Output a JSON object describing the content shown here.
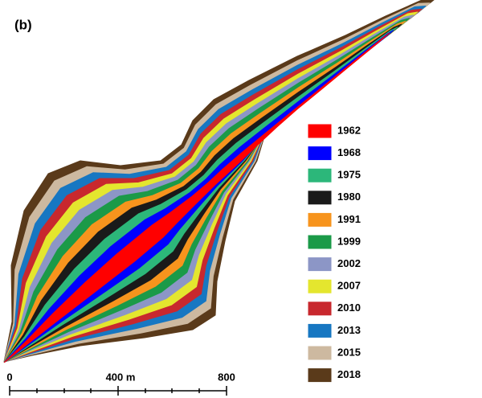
{
  "panel_label": "(b)",
  "legend": {
    "items": [
      {
        "label": "1962",
        "color": "#ff0000"
      },
      {
        "label": "1968",
        "color": "#0000ff"
      },
      {
        "label": "1975",
        "color": "#2cb77a"
      },
      {
        "label": "1980",
        "color": "#1a1a1a"
      },
      {
        "label": "1991",
        "color": "#f7941d"
      },
      {
        "label": "1999",
        "color": "#1b9a48"
      },
      {
        "label": "2002",
        "color": "#8c96c6"
      },
      {
        "label": "2007",
        "color": "#e4e62e"
      },
      {
        "label": "2010",
        "color": "#c8282e"
      },
      {
        "label": "2013",
        "color": "#1777c2"
      },
      {
        "label": "2015",
        "color": "#cdb9a0"
      },
      {
        "label": "2018",
        "color": "#5a3a1a"
      }
    ]
  },
  "scale_bar": {
    "labels": [
      "0",
      "400 m",
      "800"
    ]
  }
}
